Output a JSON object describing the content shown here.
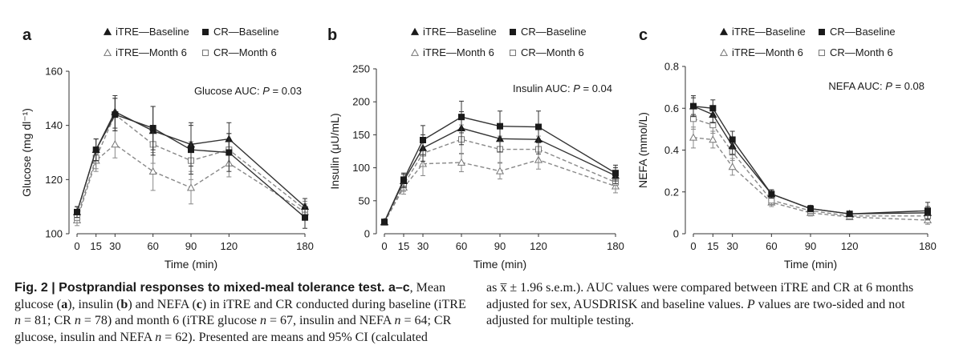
{
  "chart_data": [
    {
      "type": "line",
      "panel_label": "a",
      "xlabel": "Time (min)",
      "ylabel": "Glucose (mg dl⁻¹)",
      "x": [
        0,
        15,
        30,
        60,
        90,
        120,
        180
      ],
      "xticks": [
        "0",
        "15",
        "30",
        "60",
        "90",
        "120",
        "180"
      ],
      "ylim": [
        100,
        160
      ],
      "yticks": [
        "100",
        "120",
        "140",
        "160"
      ],
      "ytick_values": [
        100,
        120,
        140,
        160
      ],
      "annotation": {
        "prefix": "Glucose AUC: ",
        "p": "P",
        "suffix": " = 0.03"
      },
      "series": [
        {
          "name": "iTRE—Baseline",
          "values": [
            108,
            131,
            145,
            138,
            133,
            135,
            110
          ],
          "ci": [
            2,
            4,
            6,
            9,
            8,
            6,
            3
          ]
        },
        {
          "name": "CR—Baseline",
          "values": [
            108,
            131,
            144,
            139,
            131,
            130,
            106
          ],
          "ci": [
            2,
            4,
            6,
            8,
            9,
            7,
            4
          ]
        },
        {
          "name": "iTRE—Month 6",
          "values": [
            105,
            127,
            133,
            123,
            117,
            126,
            108
          ],
          "ci": [
            2,
            4,
            5,
            7,
            6,
            5,
            3
          ]
        },
        {
          "name": "CR—Month 6",
          "values": [
            106,
            128,
            144,
            133,
            127,
            131,
            109
          ],
          "ci": [
            2,
            4,
            6,
            7,
            7,
            6,
            3
          ]
        }
      ]
    },
    {
      "type": "line",
      "panel_label": "b",
      "xlabel": "Time (min)",
      "ylabel": "Insulin (μU/mL)",
      "x": [
        0,
        15,
        30,
        60,
        90,
        120,
        180
      ],
      "xticks": [
        "0",
        "15",
        "30",
        "60",
        "90",
        "120",
        "180"
      ],
      "ylim": [
        0,
        250
      ],
      "yticks": [
        "0",
        "50",
        "100",
        "150",
        "200",
        "250"
      ],
      "ytick_values": [
        0,
        50,
        100,
        150,
        200,
        250
      ],
      "annotation": {
        "prefix": "Insulin AUC: ",
        "p": "P",
        "suffix": " = 0.04"
      },
      "series": [
        {
          "name": "iTRE—Baseline",
          "values": [
            18,
            80,
            130,
            160,
            144,
            143,
            88
          ],
          "ci": [
            3,
            10,
            20,
            25,
            20,
            22,
            12
          ]
        },
        {
          "name": "CR—Baseline",
          "values": [
            18,
            82,
            142,
            177,
            163,
            162,
            92
          ],
          "ci": [
            3,
            10,
            22,
            24,
            23,
            24,
            12
          ]
        },
        {
          "name": "iTRE—Month 6",
          "values": [
            17,
            70,
            106,
            108,
            95,
            112,
            72
          ],
          "ci": [
            3,
            10,
            18,
            14,
            12,
            14,
            10
          ]
        },
        {
          "name": "CR—Month 6",
          "values": [
            17,
            74,
            122,
            143,
            128,
            128,
            78
          ],
          "ci": [
            3,
            10,
            20,
            22,
            20,
            20,
            10
          ]
        }
      ]
    },
    {
      "type": "line",
      "panel_label": "c",
      "xlabel": "Time (min)",
      "ylabel": "NEFA (mmol/L)",
      "x": [
        0,
        15,
        30,
        60,
        90,
        120,
        180
      ],
      "xticks": [
        "0",
        "15",
        "30",
        "60",
        "90",
        "120",
        "180"
      ],
      "ylim": [
        0,
        0.8
      ],
      "yticks": [
        "0",
        "0.2",
        "0.4",
        "0.6",
        "0.8"
      ],
      "ytick_values": [
        0,
        0.2,
        0.4,
        0.6,
        0.8
      ],
      "annotation": {
        "prefix": "NEFA AUC: ",
        "p": "P",
        "suffix": " = 0.08"
      },
      "series": [
        {
          "name": "iTRE—Baseline",
          "values": [
            0.61,
            0.57,
            0.42,
            0.19,
            0.12,
            0.095,
            0.1
          ],
          "ci": [
            0.05,
            0.04,
            0.04,
            0.02,
            0.015,
            0.01,
            0.03
          ]
        },
        {
          "name": "CR—Baseline",
          "values": [
            0.61,
            0.6,
            0.45,
            0.19,
            0.12,
            0.095,
            0.11
          ],
          "ci": [
            0.04,
            0.04,
            0.04,
            0.02,
            0.015,
            0.01,
            0.04
          ]
        },
        {
          "name": "iTRE—Month 6",
          "values": [
            0.46,
            0.45,
            0.32,
            0.15,
            0.1,
            0.08,
            0.065
          ],
          "ci": [
            0.05,
            0.04,
            0.04,
            0.02,
            0.015,
            0.01,
            0.02
          ]
        },
        {
          "name": "CR—Month 6",
          "values": [
            0.55,
            0.52,
            0.39,
            0.16,
            0.11,
            0.085,
            0.085
          ],
          "ci": [
            0.05,
            0.04,
            0.04,
            0.02,
            0.015,
            0.01,
            0.02
          ]
        }
      ]
    }
  ],
  "caption": {
    "fig_label": "Fig. 2 | Postprandial responses to mixed-meal tolerance test. a",
    "fig_label_dash": "–",
    "fig_label_c": "c",
    "t1": ", Mean glucose (",
    "a": "a",
    "t2": "), insulin (",
    "b": "b",
    "t3": ") and NEFA (",
    "c": "c",
    "t4": ") in iTRE and CR conducted during baseline (iTRE ",
    "n1": "n",
    "t5": " = 81; CR ",
    "n2": "n",
    "t6": " = 78) and month 6 (iTRE glucose ",
    "n3": "n",
    "t7": " = 67, insulin and NEFA ",
    "n4": "n",
    "t8": " = 64; CR glucose, insulin and NEFA ",
    "n5": "n",
    "t9": " = 62). Presented are means and 95% CI (calculated",
    "r1": "as x̅ ± 1.96 s.e.m.). AUC values were compared between iTRE and CR at 6 months adjusted for sex, AUSDRISK and baseline values. ",
    "r_p": "P",
    "r2": " values are two-sided and not adjusted for multiple testing."
  }
}
